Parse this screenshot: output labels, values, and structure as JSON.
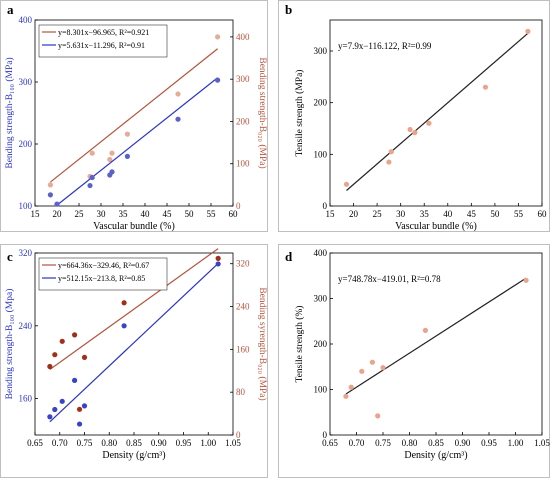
{
  "panels": [
    {
      "id": "a",
      "letter": "a",
      "chart_data": {
        "type": "scatter",
        "dual_axis": true,
        "title": "",
        "xlabel": "Vascular bundle (%)",
        "ylabel_left": "Bending strength-B₁₀₀ (MPa)",
        "ylabel_right": "Bending strength-B₀₂₀ (MPa)",
        "xlim": [
          15,
          60
        ],
        "ylim_left": [
          100,
          400
        ],
        "ylim_right": [
          0,
          440
        ],
        "xticks": [
          "15",
          "20",
          "25",
          "30",
          "35",
          "40",
          "45",
          "50",
          "55",
          "60"
        ],
        "yticks_left": [
          "100",
          "200",
          "300",
          "400"
        ],
        "yticks_right": [
          "0",
          "100",
          "200",
          "300",
          "400"
        ],
        "legend_position": "top-left",
        "series": [
          {
            "name": "y=8.301x−96.965, R²=0.921",
            "axis": "right",
            "color": "#b5533c",
            "point_color": "#e5ad98",
            "fit": {
              "slope": 8.301,
              "intercept": -96.965,
              "x_range": [
                18.5,
                56.5
              ]
            },
            "points": [
              [
                18.5,
                50
              ],
              [
                27.5,
                70
              ],
              [
                28,
                125
              ],
              [
                32,
                110
              ],
              [
                32.5,
                125
              ],
              [
                36,
                170
              ],
              [
                47.5,
                265
              ],
              [
                56.5,
                400
              ]
            ]
          },
          {
            "name": "y=5.631x−11.296, R²=0.91",
            "axis": "left",
            "color": "#2b34c4",
            "point_color": "#5a62c8",
            "fit": {
              "slope": 5.631,
              "intercept": -11.296,
              "x_range": [
                19.9,
                56.5
              ]
            },
            "points": [
              [
                18.5,
                118
              ],
              [
                20,
                103
              ],
              [
                27.5,
                133
              ],
              [
                28,
                146
              ],
              [
                32,
                150
              ],
              [
                32.5,
                155
              ],
              [
                36,
                180
              ],
              [
                47.5,
                240
              ],
              [
                56.5,
                303
              ]
            ]
          }
        ]
      }
    },
    {
      "id": "b",
      "letter": "b",
      "chart_data": {
        "type": "scatter",
        "title": "",
        "xlabel": "Vascular bundle (%)",
        "ylabel": "Tensile strength (MPa)",
        "xlim": [
          15,
          60
        ],
        "ylim": [
          0,
          360
        ],
        "xticks": [
          "15",
          "20",
          "25",
          "30",
          "35",
          "40",
          "45",
          "50",
          "55",
          "60"
        ],
        "yticks": [
          "0",
          "100",
          "200",
          "300"
        ],
        "annotation": "y=7.9x−116.122, R²=0.99",
        "series": [
          {
            "color": "#222222",
            "point_color": "#e8a48c",
            "fit": {
              "slope": 7.9,
              "intercept": -116.122,
              "x_range": [
                18.5,
                57
              ]
            },
            "points": [
              [
                18.5,
                42
              ],
              [
                27.5,
                85
              ],
              [
                28,
                105
              ],
              [
                32,
                148
              ],
              [
                33,
                142
              ],
              [
                36,
                160
              ],
              [
                48,
                230
              ],
              [
                57,
                338
              ]
            ]
          }
        ]
      }
    },
    {
      "id": "c",
      "letter": "c",
      "chart_data": {
        "type": "scatter",
        "dual_axis": true,
        "title": "",
        "xlabel": "Density (g/cm³)",
        "ylabel_left": "Bending strength-B₁₀₀ (Mpa)",
        "ylabel_right": "Bending syrength-B₀₂₀ (MPa)",
        "xlim": [
          0.65,
          1.05
        ],
        "ylim_left": [
          120,
          320
        ],
        "ylim_right": [
          0,
          340
        ],
        "xticks": [
          "0.65",
          "0.70",
          "0.75",
          "0.80",
          "0.85",
          "0.90",
          "0.95",
          "1.00",
          "1.05"
        ],
        "yticks_left": [
          "160",
          "240",
          "320"
        ],
        "yticks_right": [
          "0",
          "80",
          "160",
          "240",
          "320"
        ],
        "legend_position": "top-left",
        "series": [
          {
            "name": "y=664.36x−329.46, R²=0.67",
            "axis": "right",
            "color": "#b5533c",
            "point_color": "#a0301c",
            "fit": {
              "slope": 664.36,
              "intercept": -329.46,
              "x_range": [
                0.68,
                1.02
              ]
            },
            "points": [
              [
                0.68,
                128
              ],
              [
                0.69,
                150
              ],
              [
                0.705,
                175
              ],
              [
                0.73,
                187
              ],
              [
                0.74,
                48
              ],
              [
                0.75,
                145
              ],
              [
                0.83,
                247
              ],
              [
                1.02,
                330
              ]
            ]
          },
          {
            "name": "y=512.15x−213.8, R²=0.85",
            "axis": "left",
            "color": "#2b34c4",
            "point_color": "#3a43c6",
            "fit": {
              "slope": 512.15,
              "intercept": -213.8,
              "x_range": [
                0.68,
                1.02
              ]
            },
            "points": [
              [
                0.68,
                140
              ],
              [
                0.69,
                148
              ],
              [
                0.705,
                157
              ],
              [
                0.73,
                180
              ],
              [
                0.74,
                132
              ],
              [
                0.75,
                152
              ],
              [
                0.83,
                240
              ],
              [
                1.02,
                308
              ]
            ]
          }
        ]
      }
    },
    {
      "id": "d",
      "letter": "d",
      "chart_data": {
        "type": "scatter",
        "title": "",
        "xlabel": "Density (g/cm³)",
        "ylabel": "Tensile strength (%)",
        "xlim": [
          0.65,
          1.05
        ],
        "ylim": [
          0,
          400
        ],
        "xticks": [
          "0.65",
          "0.70",
          "0.75",
          "0.80",
          "0.85",
          "0.90",
          "0.95",
          "1.00",
          "1.05"
        ],
        "yticks": [
          "0",
          "100",
          "200",
          "300",
          "400"
        ],
        "annotation": "y=748.78x−419.01, R²=0.78",
        "series": [
          {
            "color": "#222222",
            "point_color": "#e8a48c",
            "fit": {
              "slope": 748.78,
              "intercept": -419.01,
              "x_range": [
                0.68,
                1.02
              ]
            },
            "points": [
              [
                0.68,
                85
              ],
              [
                0.69,
                105
              ],
              [
                0.71,
                140
              ],
              [
                0.73,
                160
              ],
              [
                0.74,
                42
              ],
              [
                0.75,
                148
              ],
              [
                0.83,
                230
              ],
              [
                1.02,
                340
              ]
            ]
          }
        ]
      }
    }
  ]
}
